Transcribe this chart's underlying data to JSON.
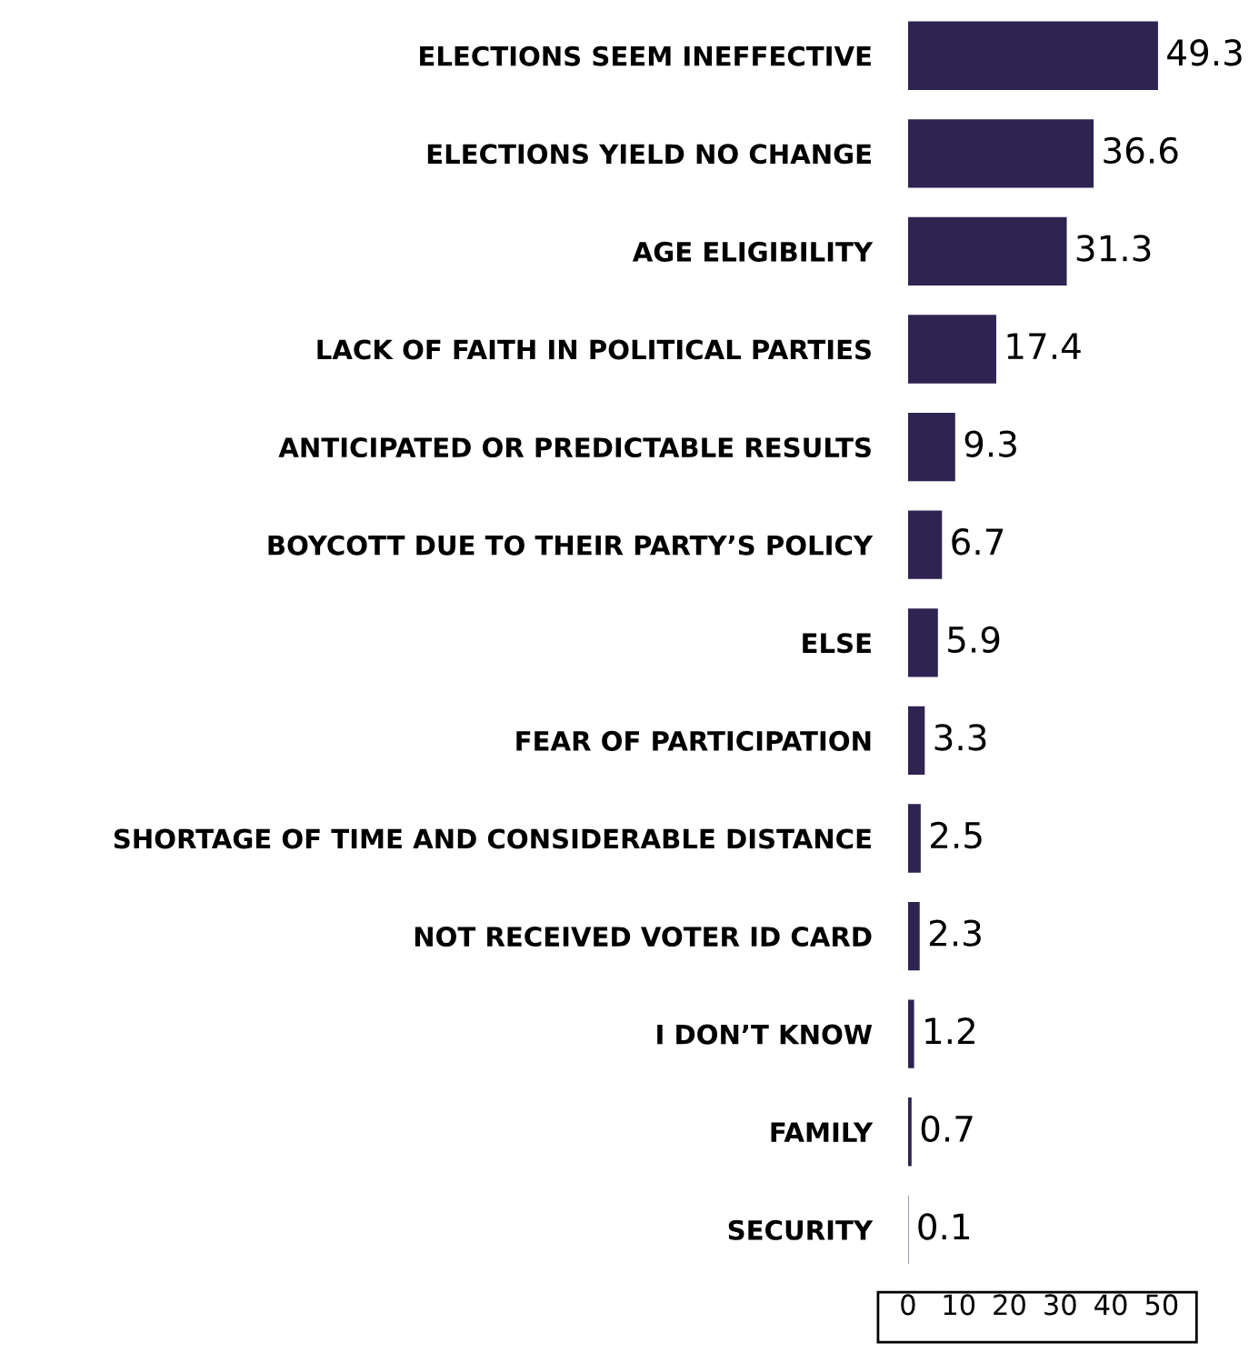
{
  "chart_data": {
    "type": "bar",
    "orientation": "horizontal",
    "categories": [
      "ELECTIONS SEEM INEFFECTIVE",
      "ELECTIONS YIELD NO CHANGE",
      "AGE ELIGIBILITY",
      "LACK OF FAITH IN POLITICAL PARTIES",
      "ANTICIPATED OR PREDICTABLE RESULTS",
      "BOYCOTT DUE TO THEIR PARTY’S POLICY",
      "ELSE",
      "FEAR OF PARTICIPATION",
      "SHORTAGE OF TIME AND CONSIDERABLE DISTANCE",
      "NOT RECEIVED VOTER ID CARD",
      "I DON’T KNOW",
      "FAMILY",
      "SECURITY"
    ],
    "values": [
      49.3,
      36.6,
      31.3,
      17.4,
      9.3,
      6.7,
      5.9,
      3.3,
      2.5,
      2.3,
      1.2,
      0.7,
      0.1
    ],
    "color": "#2f2352",
    "xlim": [
      0,
      50
    ],
    "xticks": [
      0,
      10,
      20,
      30,
      40,
      50
    ],
    "data_labels": true,
    "grid": false,
    "legend": false
  }
}
